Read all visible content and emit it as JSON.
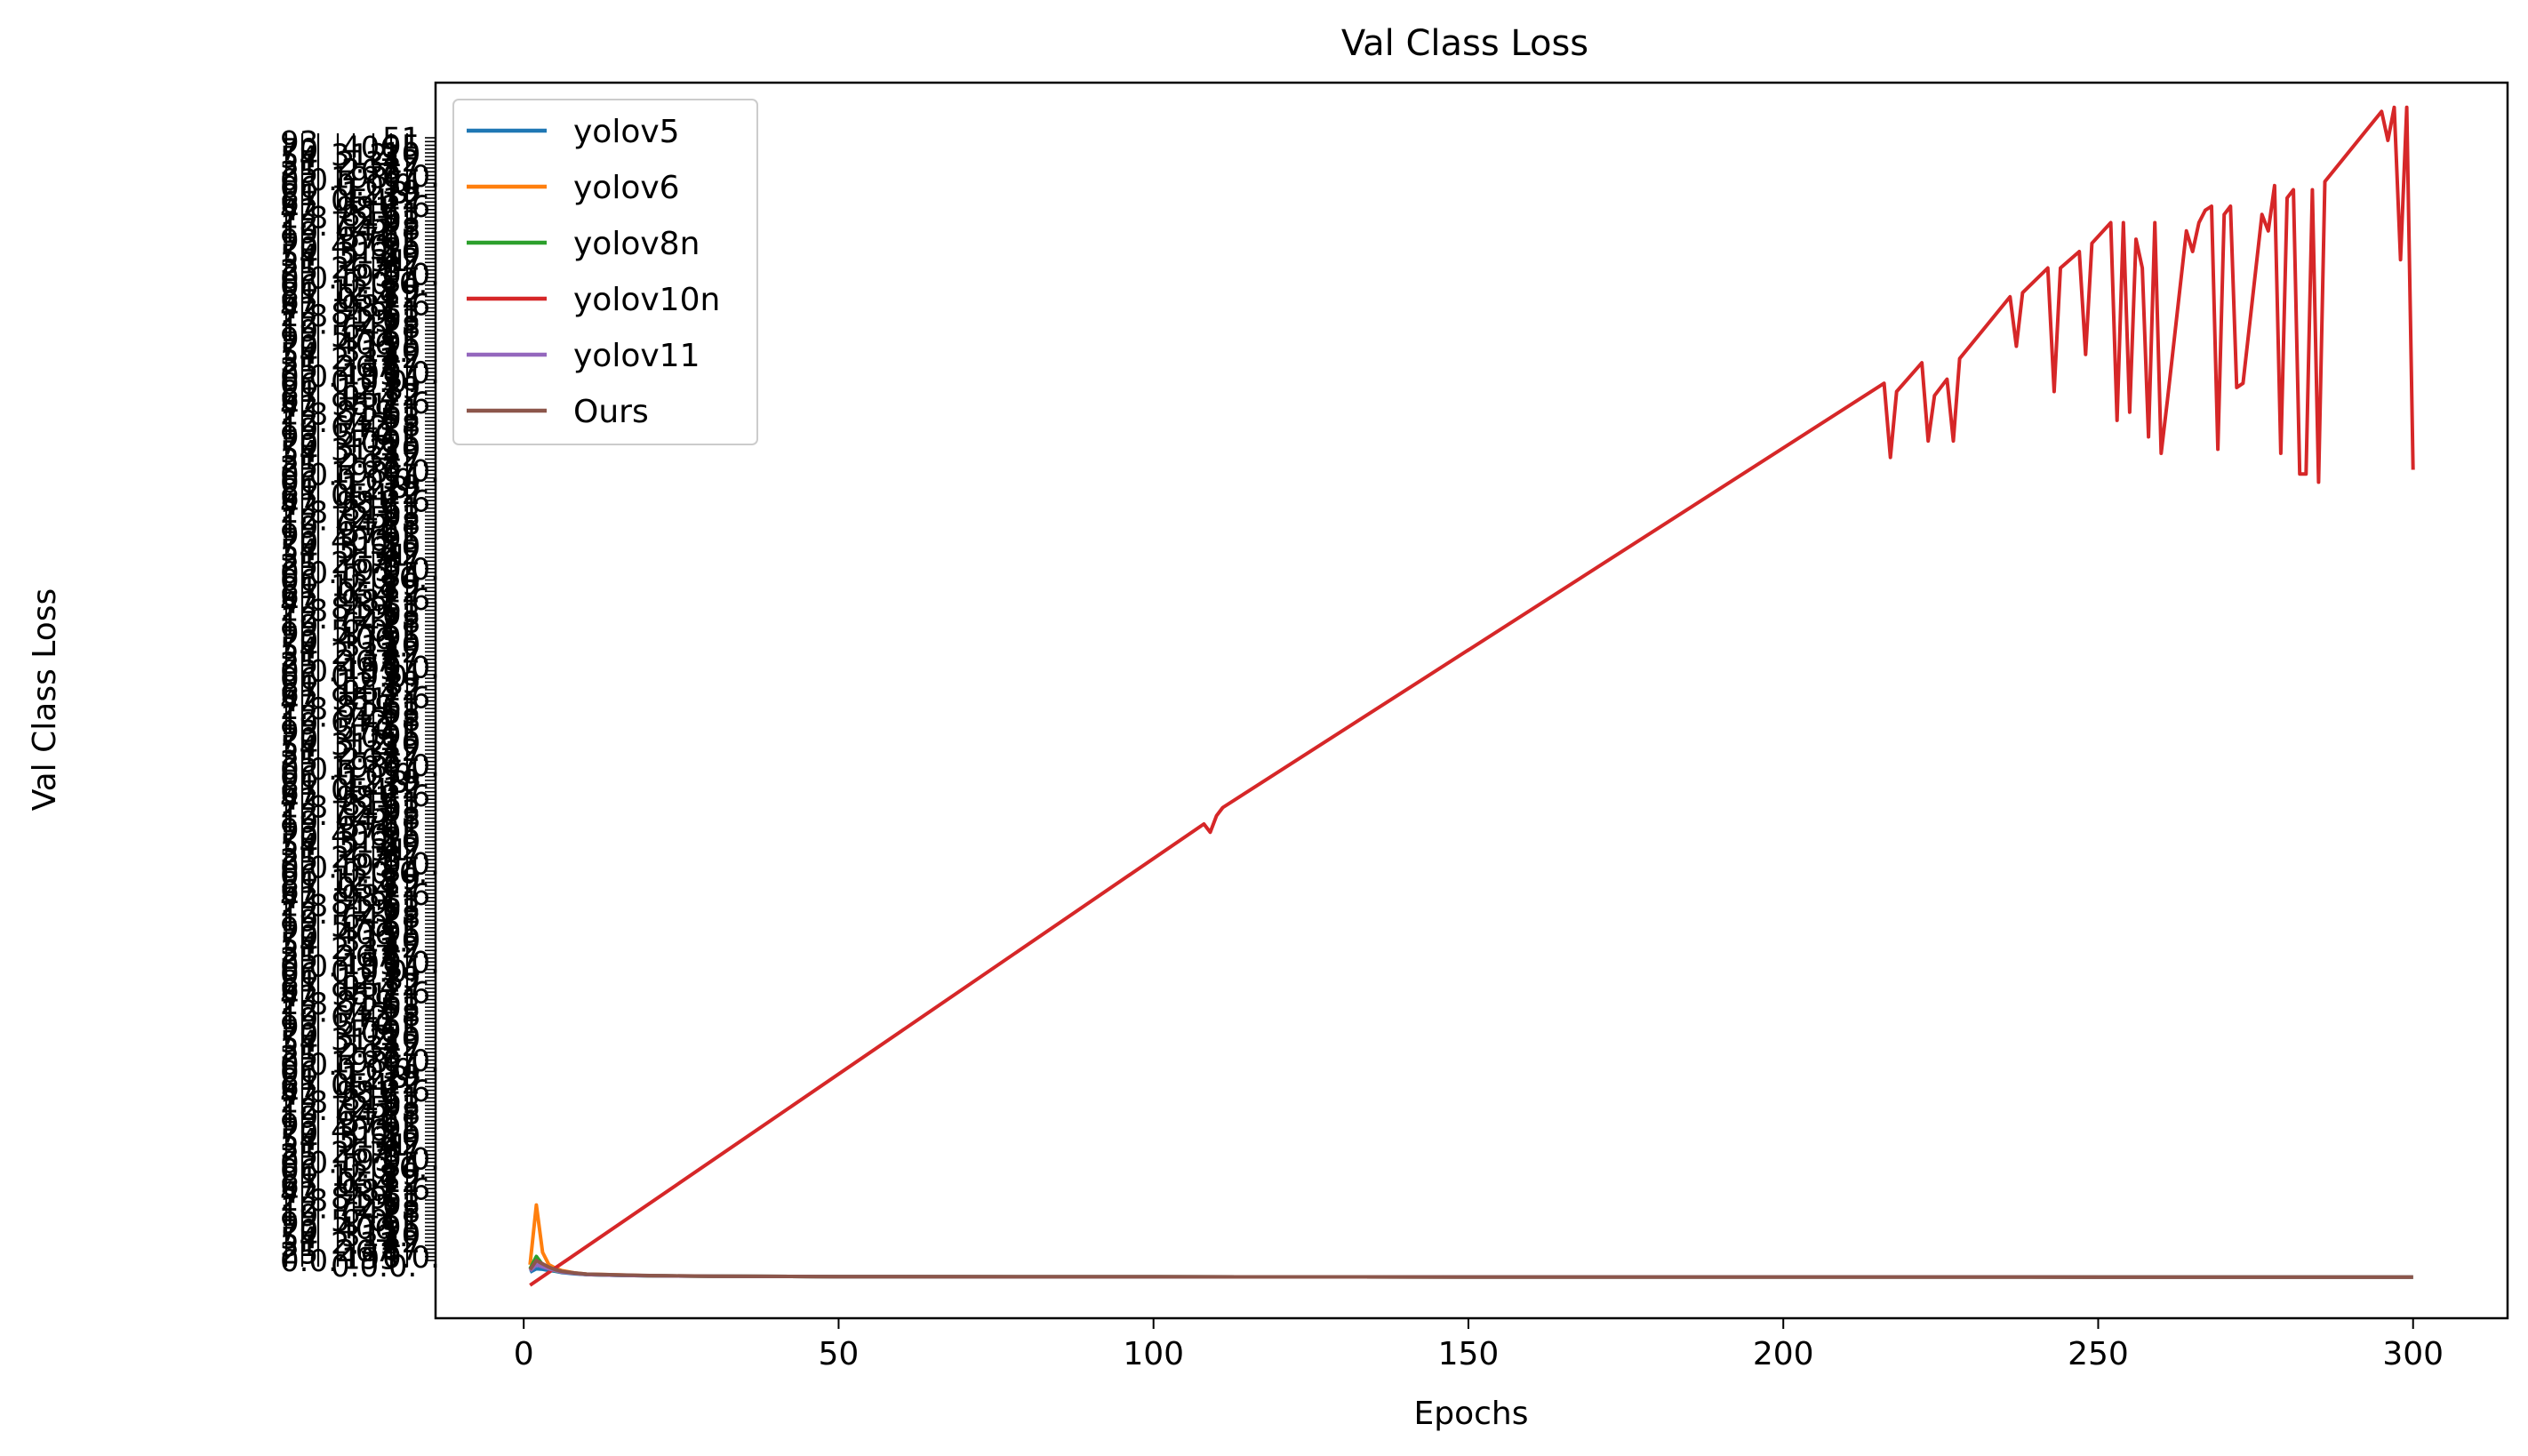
{
  "chart_data": {
    "type": "line",
    "title": "Val Class Loss",
    "xlabel": "Epochs",
    "ylabel": "Val Class Loss",
    "xlim": [
      -14,
      315
    ],
    "x_ticks": [
      0,
      50,
      100,
      150,
      200,
      250,
      300
    ],
    "ylim": [
      -10,
      290
    ],
    "grid": false,
    "legend_position": "top-left",
    "y_axis_note": "Categorical y-axis: each distinct loss string is its own tick; ~298 tick labels overlap into an illegible column",
    "series": [
      {
        "name": "yolov5",
        "color": "#1f77b4",
        "x": [
          1,
          2,
          3,
          4,
          5,
          6,
          8,
          10,
          15,
          20,
          30,
          50,
          100,
          150,
          200,
          250,
          300
        ],
        "y": [
          1.2,
          2.0,
          1.9,
          1.6,
          1.4,
          1.1,
          0.8,
          0.6,
          0.4,
          0.3,
          0.2,
          0.1,
          0.05,
          0.02,
          0.01,
          0.0,
          0.0
        ]
      },
      {
        "name": "yolov6",
        "color": "#ff7f0e",
        "x": [
          1,
          2,
          3,
          4,
          5,
          6,
          8,
          10,
          15,
          20,
          30,
          50,
          100,
          150,
          200,
          250,
          300
        ],
        "y": [
          3.0,
          17.5,
          6.0,
          3.0,
          2.2,
          1.6,
          1.0,
          0.7,
          0.5,
          0.3,
          0.2,
          0.1,
          0.05,
          0.02,
          0.01,
          0.0,
          0.0
        ]
      },
      {
        "name": "yolov8n",
        "color": "#2ca02c",
        "x": [
          1,
          2,
          3,
          4,
          5,
          6,
          8,
          10,
          15,
          20,
          30,
          50,
          100,
          150,
          200,
          250,
          300
        ],
        "y": [
          2.0,
          5.0,
          3.0,
          2.0,
          1.5,
          1.2,
          0.9,
          0.6,
          0.4,
          0.3,
          0.2,
          0.1,
          0.05,
          0.02,
          0.01,
          0.0,
          0.0
        ]
      },
      {
        "name": "yolov10n",
        "color": "#d62728",
        "x": [
          1,
          108,
          109,
          110,
          111,
          216,
          217,
          218,
          222,
          223,
          224,
          226,
          227,
          228,
          236,
          237,
          238,
          242,
          243,
          244,
          247,
          248,
          249,
          252,
          253,
          254,
          255,
          256,
          257,
          258,
          259,
          260,
          261,
          264,
          265,
          266,
          267,
          268,
          269,
          270,
          271,
          272,
          273,
          276,
          277,
          278,
          279,
          280,
          281,
          282,
          283,
          284,
          285,
          286,
          295,
          296,
          297,
          298,
          299,
          300
        ],
        "y": [
          -2,
          110,
          108,
          112,
          114,
          217,
          199,
          215,
          222,
          203,
          214,
          218,
          203,
          223,
          238,
          226,
          239,
          245,
          215,
          245,
          249,
          224,
          251,
          256,
          208,
          256,
          210,
          252,
          245,
          204,
          256,
          200,
          213,
          254,
          249,
          256,
          259,
          260,
          201,
          258,
          260,
          216,
          217,
          258,
          254,
          265,
          200,
          262,
          264,
          195,
          195,
          264,
          193,
          266,
          283,
          276,
          284,
          247,
          284,
          196
        ]
      },
      {
        "name": "yolov11",
        "color": "#9467bd",
        "x": [
          1,
          2,
          3,
          4,
          5,
          6,
          8,
          10,
          15,
          20,
          30,
          50,
          100,
          150,
          200,
          250,
          300
        ],
        "y": [
          1.5,
          3.0,
          2.5,
          2.0,
          1.6,
          1.2,
          0.9,
          0.6,
          0.4,
          0.3,
          0.2,
          0.1,
          0.05,
          0.02,
          0.01,
          0.0,
          0.0
        ]
      },
      {
        "name": "Ours",
        "color": "#8c564b",
        "x": [
          1,
          2,
          3,
          4,
          5,
          6,
          8,
          10,
          15,
          20,
          30,
          50,
          100,
          150,
          200,
          250,
          300
        ],
        "y": [
          1.8,
          4.0,
          3.2,
          2.4,
          1.8,
          1.4,
          1.0,
          0.7,
          0.5,
          0.35,
          0.2,
          0.1,
          0.05,
          0.02,
          0.01,
          0.0,
          0.0
        ]
      }
    ]
  }
}
